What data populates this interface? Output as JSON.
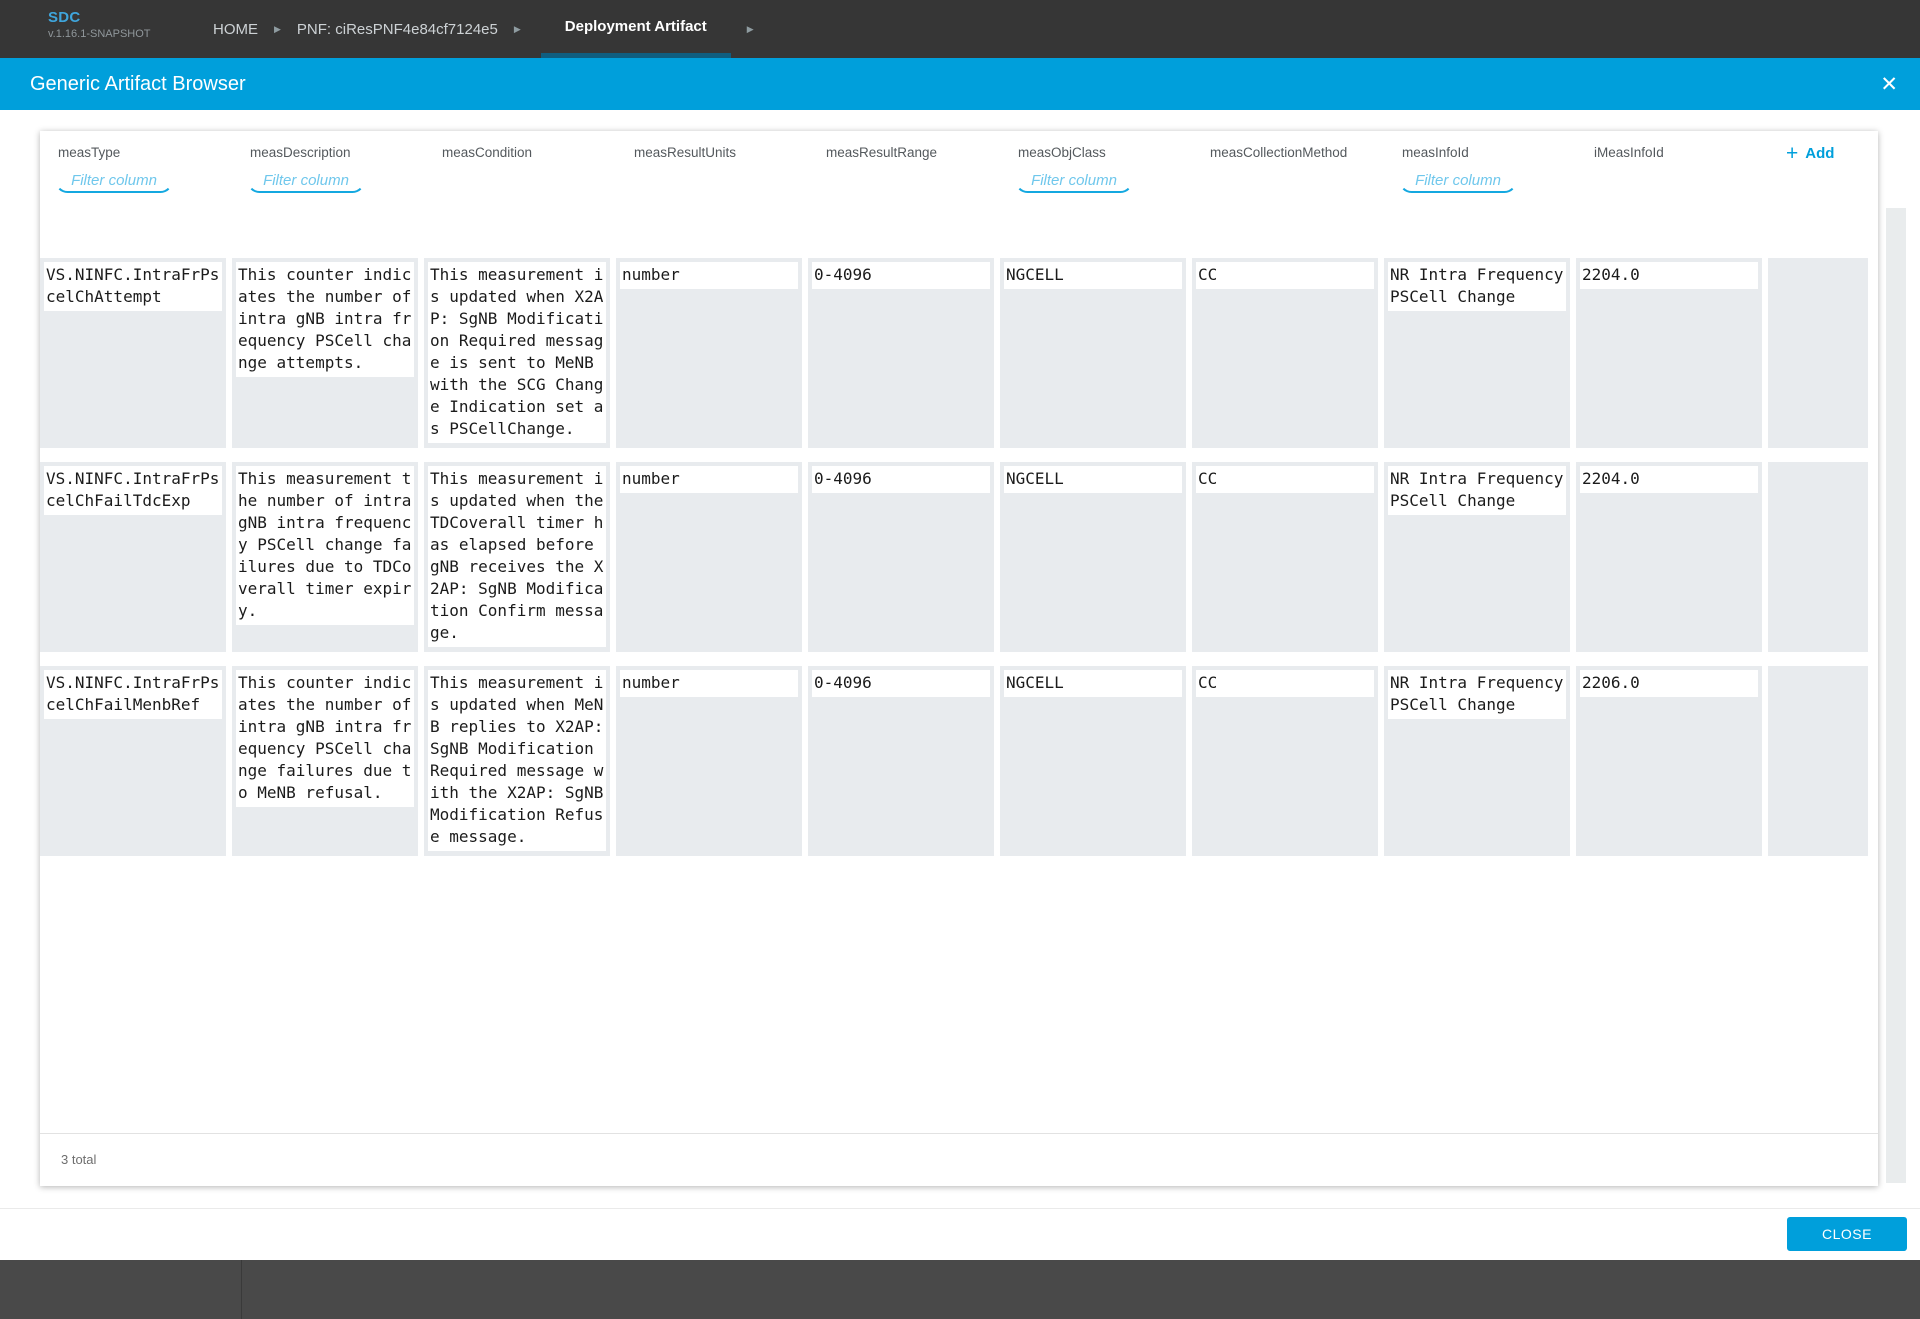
{
  "app_header": {
    "logo": "SDC",
    "version": "v.1.16.1-SNAPSHOT",
    "breadcrumb_home": "HOME",
    "breadcrumb_pnf": "PNF: ciResPNF4e84cf7124e5",
    "active_tab": "Deployment Artifact",
    "arrow_icon": "▶"
  },
  "modal": {
    "title": "Generic Artifact Browser",
    "close_icon": "✕",
    "add_icon": "+",
    "add_label": "Add",
    "filter_placeholder": "Filter column",
    "total_label": "3 total",
    "close_button_label": "CLOSE"
  },
  "table": {
    "columns": [
      {
        "label": "measType",
        "filter": true
      },
      {
        "label": "measDescription",
        "filter": true
      },
      {
        "label": "measCondition",
        "filter": false
      },
      {
        "label": "measResultUnits",
        "filter": false
      },
      {
        "label": "measResultRange",
        "filter": false
      },
      {
        "label": "measObjClass",
        "filter": true
      },
      {
        "label": "measCollectionMethod",
        "filter": false
      },
      {
        "label": "measInfoId",
        "filter": true
      },
      {
        "label": "iMeasInfoId",
        "filter": false
      }
    ],
    "rows": [
      {
        "measType": "VS.NINFC.IntraFrPscelChAttempt",
        "measDescription": "This counter indicates the number of intra gNB intra frequency PSCell change attempts.",
        "measCondition": "This measurement is updated when X2AP: SgNB Modification Required message is sent to MeNB with the SCG Change Indication set as PSCellChange.",
        "measResultUnits": "number",
        "measResultRange": "0-4096",
        "measObjClass": "NGCELL",
        "measCollectionMethod": "CC",
        "measInfoId": "NR Intra Frequency PSCell Change",
        "iMeasInfoId": "2204.0"
      },
      {
        "measType": "VS.NINFC.IntraFrPscelChFailTdcExp",
        "measDescription": "This measurement the number of intra gNB intra frequency PSCell change failures due to TDCoverall timer expiry.",
        "measCondition": "This measurement is updated when the TDCoverall timer has elapsed before gNB receives the X2AP: SgNB Modification Confirm message.",
        "measResultUnits": "number",
        "measResultRange": "0-4096",
        "measObjClass": "NGCELL",
        "measCollectionMethod": "CC",
        "measInfoId": "NR Intra Frequency PSCell Change",
        "iMeasInfoId": "2204.0"
      },
      {
        "measType": "VS.NINFC.IntraFrPscelChFailMenbRef",
        "measDescription": "This counter indicates the number of intra gNB intra frequency PSCell change failures due to MeNB refusal.",
        "measCondition": "This measurement is updated when MeNB replies to X2AP: SgNB Modification Required message with the X2AP: SgNB Modification Refuse message.",
        "measResultUnits": "number",
        "measResultRange": "0-4096",
        "measObjClass": "NGCELL",
        "measCollectionMethod": "CC",
        "measInfoId": "NR Intra Frequency PSCell Change",
        "iMeasInfoId": "2206.0"
      }
    ]
  },
  "colors": {
    "accent_blue": "#009fdb",
    "tab_underline": "#0f5e80",
    "filter_border_blue": "#14a8e0",
    "cell_background": "#e8ebee",
    "top_bar": "#363636",
    "bottom_bar": "#494949"
  }
}
